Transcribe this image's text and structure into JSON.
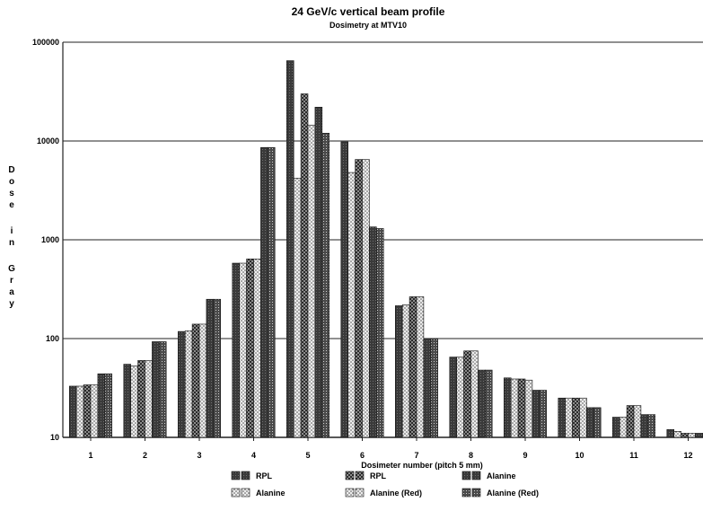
{
  "chart_data": {
    "type": "bar",
    "title": "24 GeV/c vertical beam profile",
    "subtitle": "Dosimetry at MTV10",
    "xlabel": "Dosimeter number (pitch 5 mm)",
    "ylabel": "Dose in Gray",
    "yscale": "log",
    "ylim": [
      10,
      100000
    ],
    "yticks": [
      "10",
      "100",
      "1000",
      "10000",
      "100000"
    ],
    "grid": true,
    "legend_position": "bottom",
    "categories": [
      "1",
      "2",
      "3",
      "4",
      "5",
      "6",
      "7",
      "8",
      "9",
      "10",
      "11",
      "12"
    ],
    "series": [
      {
        "name": "RPL",
        "pattern": "solid-dark",
        "values": [
          33,
          55,
          118,
          580,
          65000,
          9800,
          215,
          65,
          40,
          25,
          16,
          12
        ]
      },
      {
        "name": "Alanine",
        "pattern": "dotted-light",
        "values": [
          33,
          53,
          120,
          580,
          4200,
          4800,
          220,
          65,
          39,
          25,
          16,
          11.5
        ]
      },
      {
        "name": "RPL",
        "pattern": "checked",
        "values": [
          34,
          60,
          140,
          640,
          30000,
          6500,
          265,
          75,
          39,
          25,
          21,
          11
        ]
      },
      {
        "name": "Alanine (Red)",
        "pattern": "dotted-light",
        "values": [
          34,
          60,
          140,
          640,
          14500,
          6500,
          265,
          75,
          38,
          25,
          21,
          11
        ]
      },
      {
        "name": "Alanine",
        "pattern": "solid-dark",
        "values": [
          44,
          93,
          250,
          8600,
          22000,
          1350,
          100,
          48,
          30,
          20,
          17,
          11
        ]
      },
      {
        "name": "Alanine (Red)",
        "pattern": "checked-dark",
        "values": [
          44,
          93,
          250,
          8600,
          12000,
          1300,
          100,
          48,
          30,
          20,
          17,
          11
        ]
      }
    ]
  }
}
